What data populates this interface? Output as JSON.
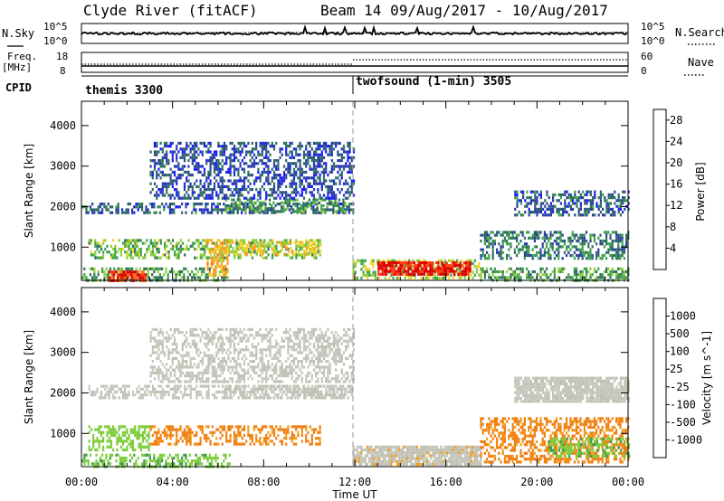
{
  "header": {
    "title": "Clyde River (fitACF)",
    "subtitle": "Beam 14 09/Aug/2017 - 10/Aug/2017"
  },
  "top_panels": {
    "nsky": {
      "label": "N.Sky",
      "yticks": [
        "10^5",
        "10^0"
      ],
      "right_label": "N.Search",
      "right_yticks": [
        "10^5",
        "10^0"
      ]
    },
    "freq": {
      "label_line1": "Freq.",
      "label_line2": "[MHz]",
      "yticks": [
        "18",
        "8"
      ],
      "right_label": "Nave",
      "right_yticks": [
        "60",
        "0"
      ]
    },
    "cpid": {
      "label": "CPID",
      "segments": [
        "themis 3300",
        "twofsound (1-min) 3505"
      ]
    }
  },
  "colors": {
    "power": [
      "#1a1aff",
      "#2a3fa0",
      "#2e6e5c",
      "#3da24a",
      "#8fcd3a",
      "#f2d22a",
      "#ffa020",
      "#ff7010",
      "#ff3a10",
      "#dd0000"
    ],
    "velocity": [
      "#2a3fbe",
      "#2d6e5e",
      "#3a9c4a",
      "#7dcc3a",
      "#c8c8c0",
      "#c0c0b4",
      "#f0a020",
      "#f07f10",
      "#f04010",
      "#dd0000"
    ]
  },
  "chart_data": [
    {
      "type": "heatmap",
      "panel": "power",
      "ylabel": "Slant Range [km]",
      "yticks": [
        1000,
        2000,
        3000,
        4000
      ],
      "ylim": [
        180,
        4600
      ],
      "xticks": [
        "00:00",
        "04:00",
        "08:00",
        "12:00",
        "16:00",
        "20:00",
        "00:00"
      ],
      "xlim_hours": [
        0,
        24
      ],
      "colorbar": {
        "label": "Power [dB]",
        "ticks": [
          "4",
          "8",
          "12",
          "16",
          "20",
          "24",
          "28"
        ],
        "range": [
          0,
          30
        ]
      },
      "regions": [
        {
          "t0": 0.0,
          "t1": 11.9,
          "r0": 1850,
          "r1": 2100,
          "level": 6
        },
        {
          "t0": 6.3,
          "t1": 11.6,
          "r0": 1900,
          "r1": 2200,
          "level": 10
        },
        {
          "t0": 0.3,
          "t1": 10.5,
          "r0": 720,
          "r1": 1200,
          "level": 12
        },
        {
          "t0": 6.0,
          "t1": 10.5,
          "r0": 850,
          "r1": 1150,
          "level": 16
        },
        {
          "t0": 0.0,
          "t1": 6.5,
          "r0": 200,
          "r1": 500,
          "level": 10
        },
        {
          "t0": 1.2,
          "t1": 2.8,
          "r0": 190,
          "r1": 420,
          "level": 26
        },
        {
          "t0": 5.5,
          "t1": 6.4,
          "r0": 300,
          "r1": 1200,
          "level": 18
        },
        {
          "t0": 11.9,
          "t1": 17.5,
          "r0": 200,
          "r1": 700,
          "level": 14
        },
        {
          "t0": 13.0,
          "t1": 17.1,
          "r0": 300,
          "r1": 650,
          "level": 28
        },
        {
          "t0": 17.5,
          "t1": 24.0,
          "r0": 200,
          "r1": 500,
          "level": 10
        },
        {
          "t0": 17.5,
          "t1": 24.0,
          "r0": 700,
          "r1": 1400,
          "level": 8
        },
        {
          "t0": 19.0,
          "t1": 24.0,
          "r0": 1800,
          "r1": 2400,
          "level": 6
        },
        {
          "t0": 3.0,
          "t1": 12.0,
          "r0": 2200,
          "r1": 3600,
          "level": 5
        }
      ]
    },
    {
      "type": "heatmap",
      "panel": "velocity",
      "ylabel": "Slant Range [km]",
      "yticks": [
        1000,
        2000,
        3000,
        4000
      ],
      "ylim": [
        180,
        4600
      ],
      "xticks": [
        "00:00",
        "04:00",
        "08:00",
        "12:00",
        "16:00",
        "20:00",
        "00:00"
      ],
      "xlim_hours": [
        0,
        24
      ],
      "xlabel": "Time UT",
      "colorbar": {
        "label": "Velocity [m s^-1]",
        "ticks": [
          "1000",
          "500",
          "100",
          "25",
          "-25",
          "-100",
          "-500",
          "-1000"
        ]
      },
      "regions": [
        {
          "t0": 0.3,
          "t1": 11.9,
          "r0": 1900,
          "r1": 2200,
          "vel": 0
        },
        {
          "t0": 6.3,
          "t1": 11.6,
          "r0": 1900,
          "r1": 2200,
          "vel": -5
        },
        {
          "t0": 3.0,
          "t1": 10.5,
          "r0": 750,
          "r1": 1200,
          "vel": -150
        },
        {
          "t0": 0.3,
          "t1": 3.0,
          "r0": 600,
          "r1": 1200,
          "vel": 60
        },
        {
          "t0": 0.0,
          "t1": 6.5,
          "r0": 200,
          "r1": 500,
          "vel": 80
        },
        {
          "t0": 11.9,
          "t1": 17.5,
          "r0": 200,
          "r1": 700,
          "vel": -10
        },
        {
          "t0": 17.5,
          "t1": 24.0,
          "r0": 300,
          "r1": 1400,
          "vel": -150
        },
        {
          "t0": 19.0,
          "t1": 24.0,
          "r0": 1800,
          "r1": 2400,
          "vel": 0
        },
        {
          "t0": 20.5,
          "t1": 24.0,
          "r0": 400,
          "r1": 900,
          "vel": 80
        },
        {
          "t0": 3.0,
          "t1": 12.0,
          "r0": 2300,
          "r1": 3600,
          "vel": 0
        }
      ]
    }
  ]
}
